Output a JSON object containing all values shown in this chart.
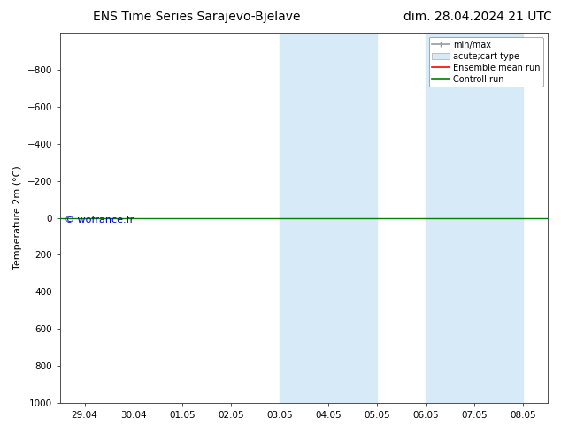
{
  "title_left": "ENS Time Series Sarajevo-Bjelave",
  "title_right": "dim. 28.04.2024 21 UTC",
  "ylabel": "Temperature 2m (°C)",
  "ylim": [
    -1000,
    1000
  ],
  "yticks": [
    -800,
    -600,
    -400,
    -200,
    0,
    200,
    400,
    600,
    800,
    1000
  ],
  "xtick_labels": [
    "29.04",
    "30.04",
    "01.05",
    "02.05",
    "03.05",
    "04.05",
    "05.05",
    "06.05",
    "07.05",
    "08.05"
  ],
  "xtick_positions": [
    0,
    1,
    2,
    3,
    4,
    5,
    6,
    7,
    8,
    9
  ],
  "xlim": [
    -0.5,
    9.5
  ],
  "shaded_regions": [
    {
      "x_start": 4.0,
      "x_end": 5.0,
      "color": "#d6eaf8"
    },
    {
      "x_start": 5.0,
      "x_end": 6.0,
      "color": "#d6eaf8"
    },
    {
      "x_start": 7.0,
      "x_end": 8.0,
      "color": "#d6eaf8"
    },
    {
      "x_start": 8.0,
      "x_end": 9.0,
      "color": "#d6eaf8"
    }
  ],
  "hline_y": 0,
  "hline_color": "#008000",
  "hline_lw": 1.0,
  "background_color": "#ffffff",
  "watermark": "© wofrance.fr",
  "watermark_color": "#0000cc",
  "title_fontsize": 10,
  "axis_fontsize": 8,
  "tick_fontsize": 7.5
}
